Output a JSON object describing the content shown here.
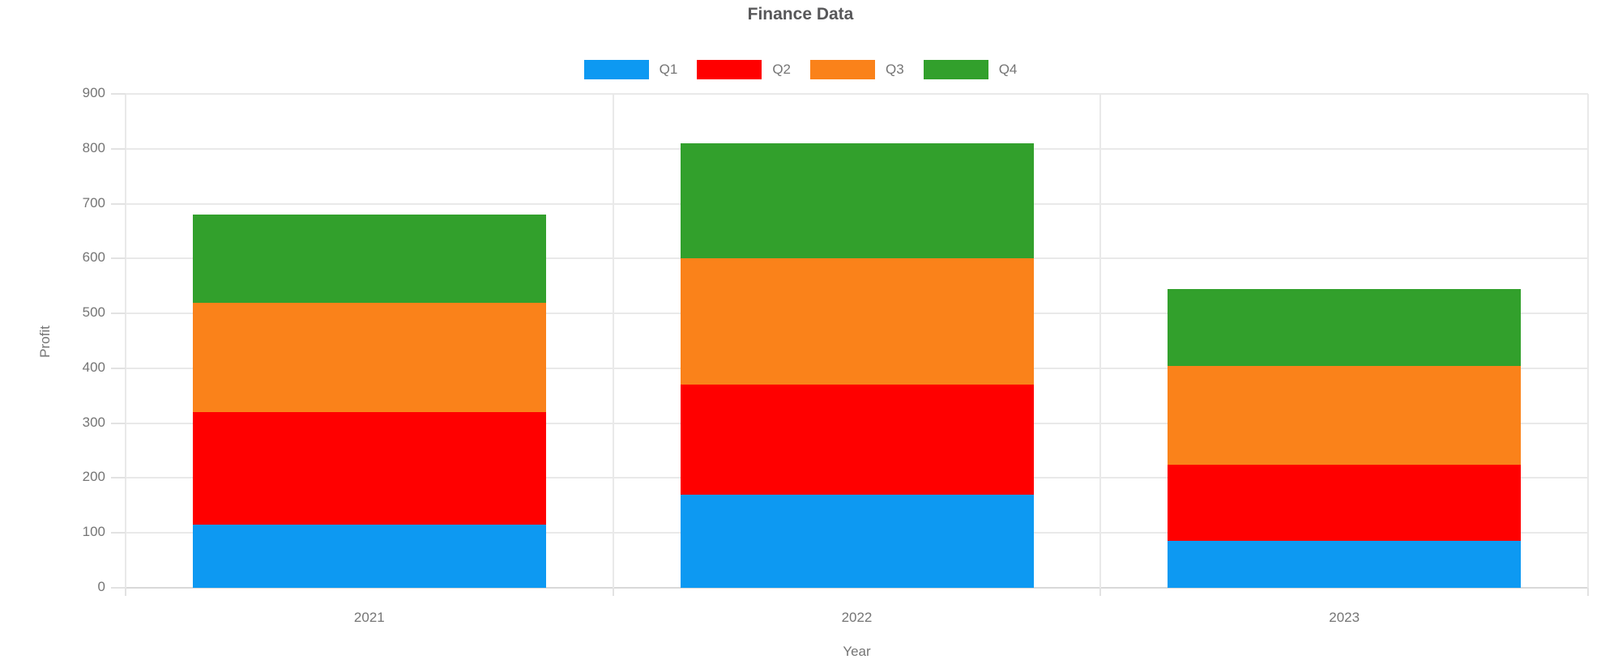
{
  "chart_data": {
    "type": "bar",
    "stacked": true,
    "title": "Finance Data",
    "xlabel": "Year",
    "ylabel": "Profit",
    "categories": [
      "2021",
      "2022",
      "2023"
    ],
    "series": [
      {
        "name": "Q1",
        "color": "#0D99F2",
        "values": [
          115,
          170,
          85
        ]
      },
      {
        "name": "Q2",
        "color": "#FF0000",
        "values": [
          205,
          200,
          140
        ]
      },
      {
        "name": "Q3",
        "color": "#FA821A",
        "values": [
          200,
          230,
          180
        ]
      },
      {
        "name": "Q4",
        "color": "#32A02C",
        "values": [
          160,
          210,
          140
        ]
      }
    ],
    "stack_totals": [
      680,
      810,
      545
    ],
    "ylim": [
      0,
      900
    ],
    "y_ticks": [
      0,
      100,
      200,
      300,
      400,
      500,
      600,
      700,
      800,
      900
    ],
    "grid": true,
    "legend_position": "top",
    "text_color": "#757575",
    "title_color": "#58585A",
    "grid_color": "#E9E9E9"
  }
}
